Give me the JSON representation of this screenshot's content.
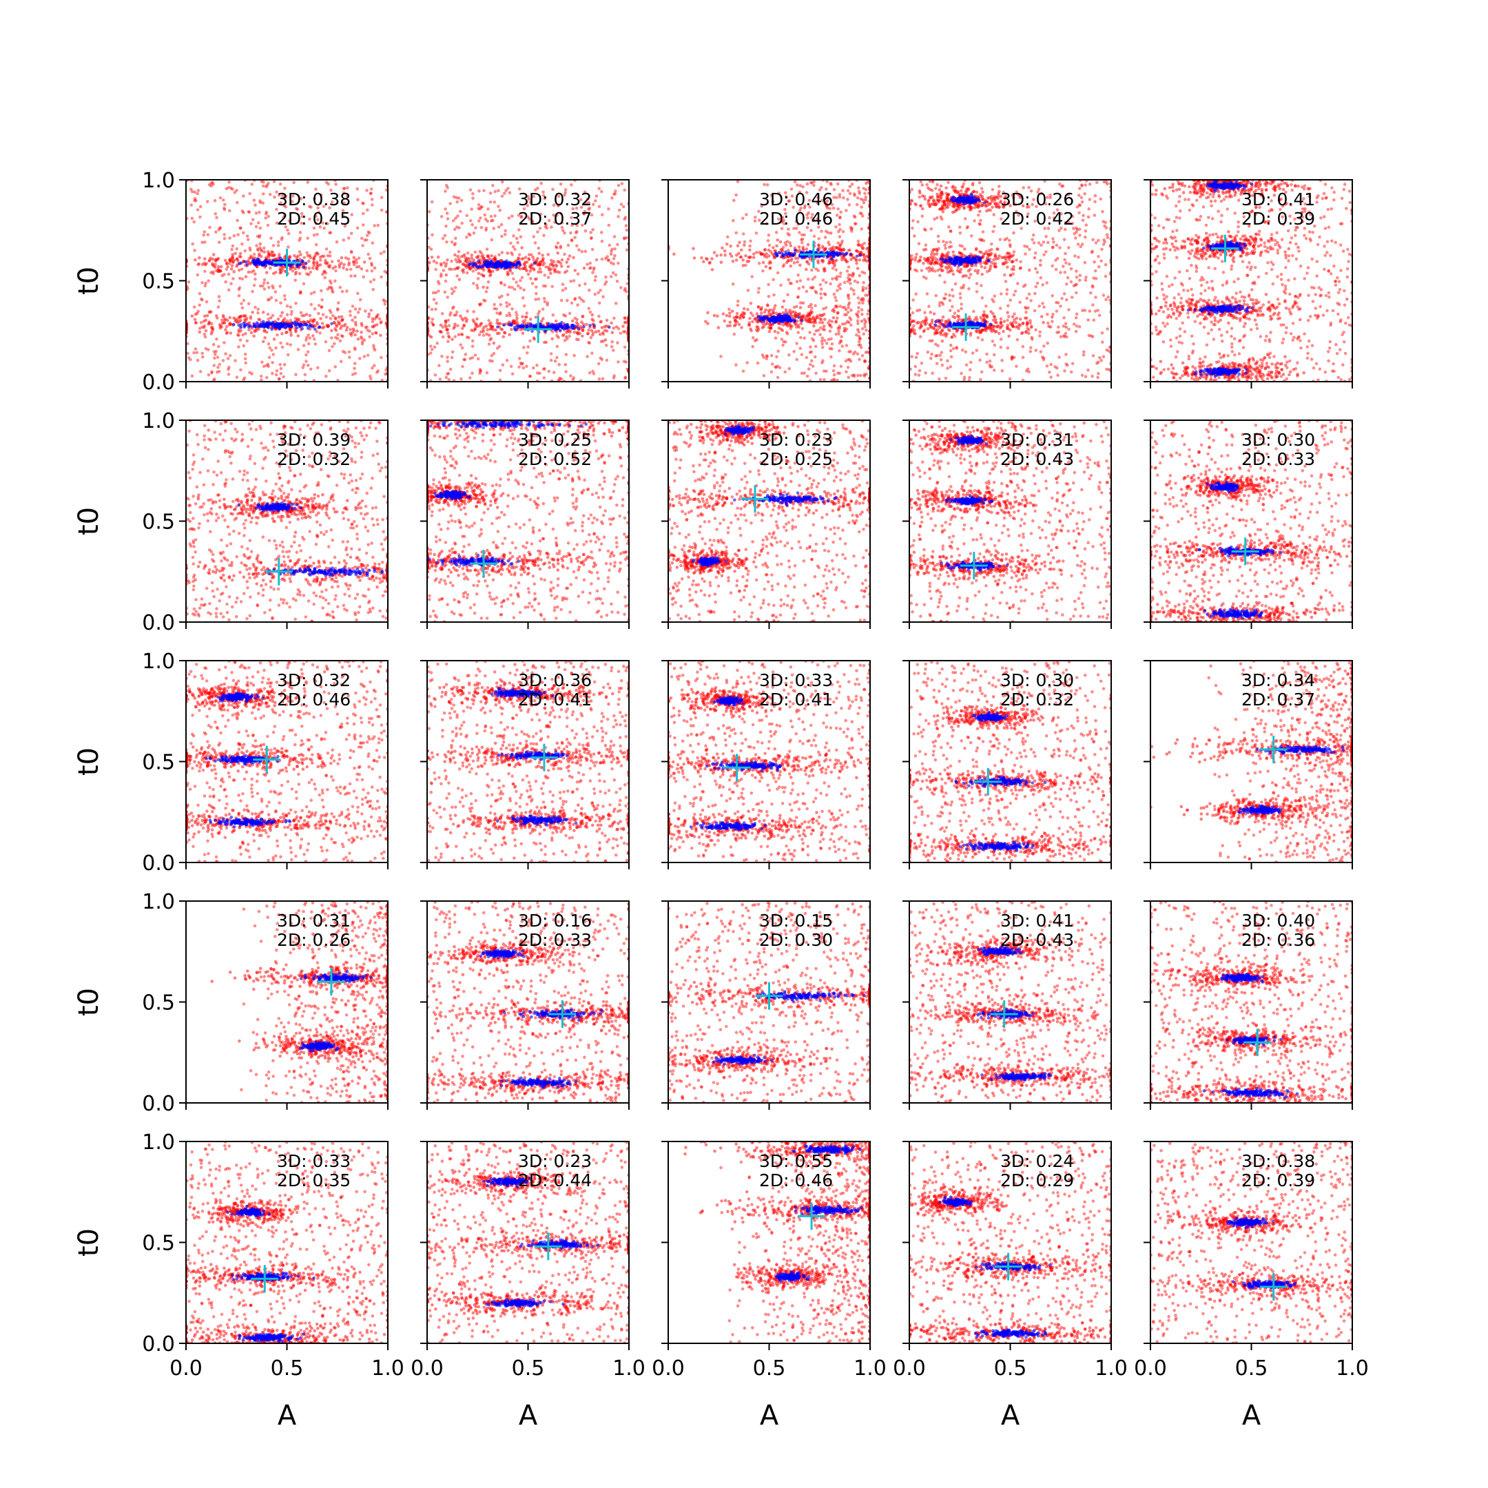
{
  "chart_data": {
    "type": "scatter",
    "layout": "5x5 grid of subplots",
    "xlabel": "A",
    "ylabel": "t0",
    "xlim": [
      0,
      1
    ],
    "ylim": [
      0,
      1
    ],
    "xticks": [
      "0.0",
      "0.5",
      "1.0"
    ],
    "yticks": [
      "0.0",
      "0.5",
      "1.0"
    ],
    "colors": {
      "wide_samples": "#ff0000",
      "tight_samples": "#0000ff",
      "marker": "#17becf"
    },
    "panels": [
      {
        "metrics": [
          "3D: 0.38",
          "2D: 0.45"
        ],
        "marker": [
          0.5,
          0.59
        ],
        "bands": [
          [
            0.59,
            0.45,
            0.12
          ],
          [
            0.28,
            0.45,
            0.16
          ]
        ],
        "side": 0
      },
      {
        "metrics": [
          "3D: 0.32",
          "2D: 0.37"
        ],
        "marker": [
          0.55,
          0.26
        ],
        "bands": [
          [
            0.58,
            0.35,
            0.1
          ],
          [
            0.27,
            0.6,
            0.18
          ]
        ],
        "side": 0
      },
      {
        "metrics": [
          "3D: 0.46",
          "2D: 0.46"
        ],
        "marker": [
          0.72,
          0.63
        ],
        "bands": [
          [
            0.63,
            0.72,
            0.15
          ],
          [
            0.31,
            0.55,
            0.08
          ]
        ],
        "side": 1
      },
      {
        "metrics": [
          "3D: 0.26",
          "2D: 0.42"
        ],
        "marker": [
          0.28,
          0.27
        ],
        "bands": [
          [
            0.9,
            0.28,
            0.06
          ],
          [
            0.6,
            0.26,
            0.08
          ],
          [
            0.28,
            0.28,
            0.1
          ]
        ],
        "side": 0
      },
      {
        "metrics": [
          "3D: 0.41",
          "2D: 0.39"
        ],
        "marker": [
          0.37,
          0.66
        ],
        "bands": [
          [
            0.97,
            0.37,
            0.08
          ],
          [
            0.67,
            0.37,
            0.07
          ],
          [
            0.36,
            0.35,
            0.1
          ],
          [
            0.05,
            0.36,
            0.09
          ]
        ],
        "side": 0
      },
      {
        "metrics": [
          "3D: 0.39",
          "2D: 0.32"
        ],
        "marker": [
          0.46,
          0.25
        ],
        "bands": [
          [
            0.57,
            0.45,
            0.08
          ],
          [
            0.25,
            0.7,
            0.22
          ]
        ],
        "side": 0
      },
      {
        "metrics": [
          "3D: 0.25",
          "2D: 0.52"
        ],
        "marker": [
          0.28,
          0.29
        ],
        "bands": [
          [
            0.98,
            0.35,
            0.3
          ],
          [
            0.63,
            0.12,
            0.06
          ],
          [
            0.3,
            0.25,
            0.15
          ]
        ],
        "side": 0
      },
      {
        "metrics": [
          "3D: 0.23",
          "2D: 0.25"
        ],
        "marker": [
          0.43,
          0.61
        ],
        "bands": [
          [
            0.95,
            0.35,
            0.06
          ],
          [
            0.61,
            0.6,
            0.18
          ],
          [
            0.3,
            0.2,
            0.05
          ]
        ],
        "side": 0
      },
      {
        "metrics": [
          "3D: 0.31",
          "2D: 0.43"
        ],
        "marker": [
          0.32,
          0.28
        ],
        "bands": [
          [
            0.9,
            0.3,
            0.06
          ],
          [
            0.6,
            0.3,
            0.08
          ],
          [
            0.28,
            0.32,
            0.1
          ]
        ],
        "side": 0
      },
      {
        "metrics": [
          "3D: 0.30",
          "2D: 0.33"
        ],
        "marker": [
          0.47,
          0.35
        ],
        "bands": [
          [
            0.67,
            0.38,
            0.06
          ],
          [
            0.35,
            0.47,
            0.14
          ],
          [
            0.04,
            0.42,
            0.12
          ]
        ],
        "side": 0
      },
      {
        "metrics": [
          "3D: 0.32",
          "2D: 0.46"
        ],
        "marker": [
          0.4,
          0.51
        ],
        "bands": [
          [
            0.82,
            0.25,
            0.07
          ],
          [
            0.51,
            0.28,
            0.12
          ],
          [
            0.2,
            0.3,
            0.15
          ]
        ],
        "side": 0
      },
      {
        "metrics": [
          "3D: 0.36",
          "2D: 0.41"
        ],
        "marker": [
          0.58,
          0.52
        ],
        "bands": [
          [
            0.84,
            0.45,
            0.1
          ],
          [
            0.53,
            0.55,
            0.14
          ],
          [
            0.21,
            0.55,
            0.12
          ]
        ],
        "side": 0
      },
      {
        "metrics": [
          "3D: 0.33",
          "2D: 0.41"
        ],
        "marker": [
          0.34,
          0.47
        ],
        "bands": [
          [
            0.8,
            0.3,
            0.06
          ],
          [
            0.48,
            0.4,
            0.14
          ],
          [
            0.18,
            0.3,
            0.12
          ]
        ],
        "side": 0
      },
      {
        "metrics": [
          "3D: 0.30",
          "2D: 0.32"
        ],
        "marker": [
          0.39,
          0.4
        ],
        "bands": [
          [
            0.72,
            0.4,
            0.06
          ],
          [
            0.4,
            0.45,
            0.14
          ],
          [
            0.08,
            0.45,
            0.15
          ]
        ],
        "side": 0
      },
      {
        "metrics": [
          "3D: 0.34",
          "2D: 0.37"
        ],
        "marker": [
          0.61,
          0.56
        ],
        "bands": [
          [
            0.56,
            0.75,
            0.15
          ],
          [
            0.26,
            0.55,
            0.08
          ]
        ],
        "side": 1
      },
      {
        "metrics": [
          "3D: 0.31",
          "2D: 0.26"
        ],
        "marker": [
          0.72,
          0.6
        ],
        "bands": [
          [
            0.62,
            0.75,
            0.12
          ],
          [
            0.28,
            0.66,
            0.07
          ]
        ],
        "side": 1
      },
      {
        "metrics": [
          "3D: 0.16",
          "2D: 0.33"
        ],
        "marker": [
          0.67,
          0.44
        ],
        "bands": [
          [
            0.74,
            0.38,
            0.08
          ],
          [
            0.44,
            0.65,
            0.14
          ],
          [
            0.1,
            0.55,
            0.15
          ]
        ],
        "side": 0
      },
      {
        "metrics": [
          "3D: 0.15",
          "2D: 0.30"
        ],
        "marker": [
          0.5,
          0.53
        ],
        "bands": [
          [
            0.53,
            0.65,
            0.2
          ],
          [
            0.21,
            0.35,
            0.1
          ]
        ],
        "side": 0
      },
      {
        "metrics": [
          "3D: 0.41",
          "2D: 0.43"
        ],
        "marker": [
          0.47,
          0.44
        ],
        "bands": [
          [
            0.75,
            0.45,
            0.08
          ],
          [
            0.44,
            0.48,
            0.1
          ],
          [
            0.13,
            0.55,
            0.12
          ]
        ],
        "side": 0
      },
      {
        "metrics": [
          "3D: 0.40",
          "2D: 0.36"
        ],
        "marker": [
          0.53,
          0.3
        ],
        "bands": [
          [
            0.62,
            0.45,
            0.08
          ],
          [
            0.31,
            0.5,
            0.08
          ],
          [
            0.05,
            0.5,
            0.15
          ]
        ],
        "side": 0
      },
      {
        "metrics": [
          "3D: 0.33",
          "2D: 0.35"
        ],
        "marker": [
          0.39,
          0.32
        ],
        "bands": [
          [
            0.65,
            0.32,
            0.06
          ],
          [
            0.33,
            0.38,
            0.12
          ],
          [
            0.03,
            0.4,
            0.12
          ]
        ],
        "side": 0
      },
      {
        "metrics": [
          "3D: 0.23",
          "2D: 0.44"
        ],
        "marker": [
          0.6,
          0.48
        ],
        "bands": [
          [
            0.8,
            0.4,
            0.08
          ],
          [
            0.49,
            0.65,
            0.14
          ],
          [
            0.2,
            0.45,
            0.12
          ]
        ],
        "side": 0
      },
      {
        "metrics": [
          "3D: 0.55",
          "2D: 0.46"
        ],
        "marker": [
          0.71,
          0.63
        ],
        "bands": [
          [
            0.96,
            0.8,
            0.12
          ],
          [
            0.66,
            0.8,
            0.12
          ],
          [
            0.33,
            0.6,
            0.06
          ]
        ],
        "side": 1
      },
      {
        "metrics": [
          "3D: 0.24",
          "2D: 0.29"
        ],
        "marker": [
          0.49,
          0.38
        ],
        "bands": [
          [
            0.7,
            0.23,
            0.06
          ],
          [
            0.38,
            0.5,
            0.12
          ],
          [
            0.05,
            0.5,
            0.15
          ]
        ],
        "side": 0
      },
      {
        "metrics": [
          "3D: 0.38",
          "2D: 0.39"
        ],
        "marker": [
          0.61,
          0.28
        ],
        "bands": [
          [
            0.6,
            0.48,
            0.08
          ],
          [
            0.29,
            0.58,
            0.12
          ]
        ],
        "side": 0
      }
    ]
  }
}
